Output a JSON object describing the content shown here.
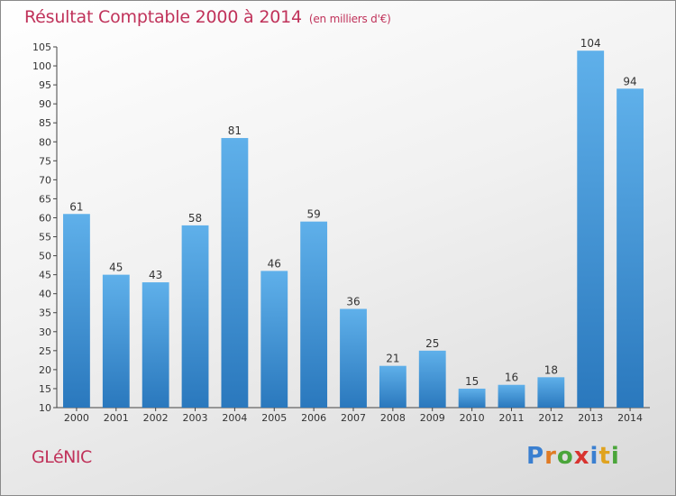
{
  "title": "Résultat Comptable 2000 à 2014",
  "subtitle": "(en milliers d'€)",
  "place": "GLéNIC",
  "logo": {
    "letters": [
      {
        "ch": "P",
        "color": "#3a7fd0"
      },
      {
        "ch": "r",
        "color": "#e07b24"
      },
      {
        "ch": "o",
        "color": "#4aa53a"
      },
      {
        "ch": "x",
        "color": "#d8332f"
      },
      {
        "ch": "i",
        "color": "#3a7fd0"
      },
      {
        "ch": "t",
        "color": "#e0a31f"
      },
      {
        "ch": "i",
        "color": "#4aa53a"
      }
    ]
  },
  "colors": {
    "title": "#c0325a",
    "bar_top": "#5fb0ea",
    "bar_bottom": "#2a78bd",
    "axis": "#444444"
  },
  "chart_data": {
    "type": "bar",
    "title": "Résultat Comptable 2000 à 2014",
    "ylabel": "en milliers d'€",
    "categories": [
      "2000",
      "2001",
      "2002",
      "2003",
      "2004",
      "2005",
      "2006",
      "2007",
      "2008",
      "2009",
      "2010",
      "2011",
      "2012",
      "2013",
      "2014"
    ],
    "values": [
      61,
      45,
      43,
      58,
      81,
      46,
      59,
      36,
      21,
      25,
      15,
      16,
      18,
      104,
      94
    ],
    "ylim": [
      10,
      105
    ],
    "yticks": [
      10,
      15,
      20,
      25,
      30,
      35,
      40,
      45,
      50,
      55,
      60,
      65,
      70,
      75,
      80,
      85,
      90,
      95,
      100,
      105
    ],
    "grid": false,
    "legend": "none"
  }
}
